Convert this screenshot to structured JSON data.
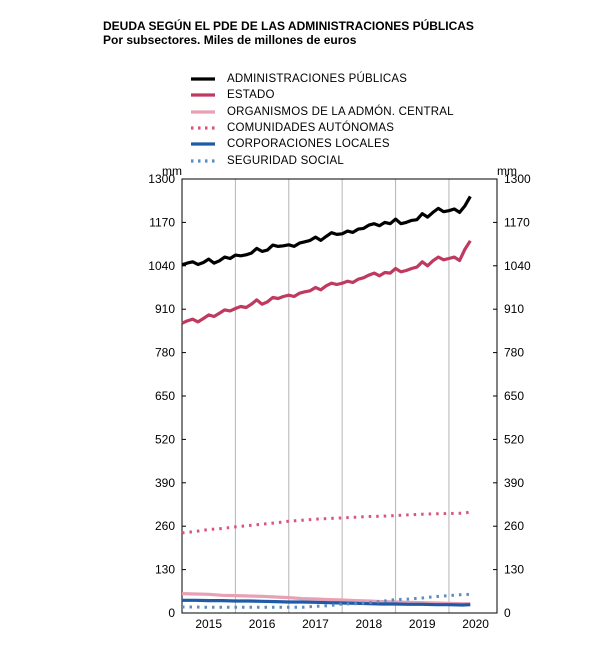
{
  "chart_data": {
    "type": "line",
    "title": "DEUDA SEGÚN EL PDE DE LAS ADMINISTRACIONES PÚBLICAS",
    "subtitle": "Por subsectores. Miles de millones de euros",
    "y_unit_left": "mm",
    "y_unit_right": "mm",
    "ylim": [
      0,
      1300
    ],
    "yticks": [
      0,
      130,
      260,
      390,
      520,
      650,
      780,
      910,
      1040,
      1170,
      1300
    ],
    "xlim": [
      2014.5,
      2020.4
    ],
    "xtick_labels": [
      "2015",
      "2016",
      "2017",
      "2018",
      "2019",
      "2020"
    ],
    "grid": "vertical",
    "legend_position": "top-left",
    "series": [
      {
        "name": "ADMINISTRACIONES PÚBLICAS",
        "color": "#000000",
        "style": "solid",
        "x": [
          2014.5,
          2014.6,
          2014.7,
          2014.8,
          2014.9,
          2015.0,
          2015.1,
          2015.2,
          2015.3,
          2015.4,
          2015.5,
          2015.6,
          2015.7,
          2015.8,
          2015.9,
          2016.0,
          2016.1,
          2016.2,
          2016.3,
          2016.4,
          2016.5,
          2016.6,
          2016.7,
          2016.8,
          2016.9,
          2017.0,
          2017.1,
          2017.2,
          2017.3,
          2017.4,
          2017.5,
          2017.6,
          2017.7,
          2017.8,
          2017.9,
          2018.0,
          2018.1,
          2018.2,
          2018.3,
          2018.4,
          2018.5,
          2018.6,
          2018.7,
          2018.8,
          2018.9,
          2019.0,
          2019.1,
          2019.2,
          2019.3,
          2019.4,
          2019.5,
          2019.6,
          2019.7,
          2019.8,
          2019.9
        ],
        "y": [
          1043,
          1048,
          1052,
          1044,
          1050,
          1060,
          1048,
          1055,
          1066,
          1062,
          1072,
          1070,
          1073,
          1078,
          1092,
          1083,
          1087,
          1102,
          1098,
          1100,
          1103,
          1098,
          1108,
          1112,
          1116,
          1126,
          1116,
          1128,
          1139,
          1134,
          1136,
          1144,
          1140,
          1150,
          1152,
          1162,
          1166,
          1160,
          1170,
          1166,
          1180,
          1166,
          1170,
          1176,
          1178,
          1196,
          1186,
          1200,
          1212,
          1202,
          1205,
          1210,
          1200,
          1220,
          1248
        ]
      },
      {
        "name": "ESTADO",
        "color": "#c0395f",
        "style": "solid",
        "x": [
          2014.5,
          2014.6,
          2014.7,
          2014.8,
          2014.9,
          2015.0,
          2015.1,
          2015.2,
          2015.3,
          2015.4,
          2015.5,
          2015.6,
          2015.7,
          2015.8,
          2015.9,
          2016.0,
          2016.1,
          2016.2,
          2016.3,
          2016.4,
          2016.5,
          2016.6,
          2016.7,
          2016.8,
          2016.9,
          2017.0,
          2017.1,
          2017.2,
          2017.3,
          2017.4,
          2017.5,
          2017.6,
          2017.7,
          2017.8,
          2017.9,
          2018.0,
          2018.1,
          2018.2,
          2018.3,
          2018.4,
          2018.5,
          2018.6,
          2018.7,
          2018.8,
          2018.9,
          2019.0,
          2019.1,
          2019.2,
          2019.3,
          2019.4,
          2019.5,
          2019.6,
          2019.7,
          2019.8,
          2019.9
        ],
        "y": [
          868,
          875,
          880,
          872,
          882,
          893,
          888,
          898,
          908,
          905,
          912,
          918,
          915,
          925,
          938,
          925,
          932,
          945,
          942,
          948,
          952,
          948,
          958,
          962,
          965,
          975,
          968,
          980,
          988,
          984,
          988,
          994,
          990,
          1000,
          1004,
          1012,
          1018,
          1010,
          1020,
          1018,
          1032,
          1022,
          1026,
          1032,
          1036,
          1052,
          1040,
          1055,
          1066,
          1058,
          1062,
          1066,
          1056,
          1090,
          1115
        ]
      },
      {
        "name": "ORGANISMOS DE LA ADMÓN. CENTRAL",
        "color": "#e8a0b4",
        "style": "solid",
        "x": [
          2014.5,
          2014.75,
          2015.0,
          2015.25,
          2015.5,
          2015.75,
          2016.0,
          2016.25,
          2016.5,
          2016.75,
          2017.0,
          2017.25,
          2017.5,
          2017.75,
          2018.0,
          2018.25,
          2018.5,
          2018.75,
          2019.0,
          2019.25,
          2019.5,
          2019.75,
          2019.9
        ],
        "y": [
          58,
          57,
          56,
          53,
          52,
          51,
          50,
          48,
          46,
          43,
          42,
          40,
          39,
          37,
          36,
          34,
          33,
          32,
          31,
          30,
          29,
          28,
          28
        ]
      },
      {
        "name": "COMUNIDADES AUTÓNOMAS",
        "color": "#d9567a",
        "style": "dotted",
        "x": [
          2014.5,
          2014.75,
          2015.0,
          2015.25,
          2015.5,
          2015.75,
          2016.0,
          2016.25,
          2016.5,
          2016.75,
          2017.0,
          2017.25,
          2017.5,
          2017.75,
          2018.0,
          2018.25,
          2018.5,
          2018.75,
          2019.0,
          2019.25,
          2019.5,
          2019.75,
          2019.9
        ],
        "y": [
          240,
          244,
          250,
          253,
          258,
          262,
          266,
          270,
          275,
          278,
          281,
          283,
          285,
          287,
          289,
          290,
          292,
          294,
          296,
          297,
          298,
          299,
          302
        ]
      },
      {
        "name": "CORPORACIONES LOCALES",
        "color": "#1f5aa6",
        "style": "solid",
        "x": [
          2014.5,
          2014.75,
          2015.0,
          2015.25,
          2015.5,
          2015.75,
          2016.0,
          2016.25,
          2016.5,
          2016.75,
          2017.0,
          2017.25,
          2017.5,
          2017.75,
          2018.0,
          2018.25,
          2018.5,
          2018.75,
          2019.0,
          2019.25,
          2019.5,
          2019.75,
          2019.9
        ],
        "y": [
          38,
          38,
          37,
          37,
          36,
          36,
          35,
          34,
          33,
          33,
          32,
          31,
          30,
          29,
          28,
          27,
          27,
          26,
          26,
          25,
          25,
          24,
          25
        ]
      },
      {
        "name": "SEGURIDAD SOCIAL",
        "color": "#5b8cc4",
        "style": "dotted",
        "x": [
          2014.5,
          2014.75,
          2015.0,
          2015.25,
          2015.5,
          2015.75,
          2016.0,
          2016.25,
          2016.5,
          2016.75,
          2017.0,
          2017.25,
          2017.5,
          2017.75,
          2018.0,
          2018.25,
          2018.5,
          2018.75,
          2019.0,
          2019.25,
          2019.5,
          2019.75,
          2019.9
        ],
        "y": [
          18,
          18,
          17,
          17,
          17,
          17,
          17,
          17,
          17,
          17,
          20,
          22,
          27,
          28,
          31,
          35,
          40,
          42,
          45,
          49,
          52,
          55,
          56
        ]
      }
    ]
  }
}
